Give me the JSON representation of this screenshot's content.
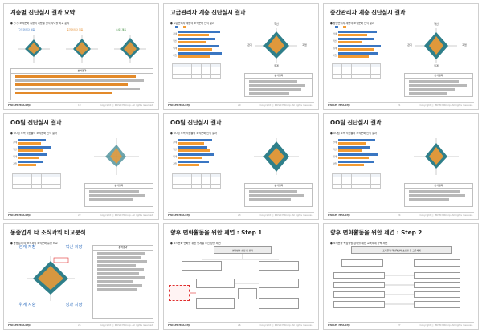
{
  "slides": [
    {
      "title": "계층별 진단실시 결과 요약",
      "radar_titles": [
        "고급관리자 계층",
        "중간관리자 계층",
        "사원 계층"
      ],
      "analysis_label": "분석결과",
      "page": "19"
    },
    {
      "title": "고급관리자 계층 진단실시 결과",
      "analysis_label": "분석결과",
      "page": "20"
    },
    {
      "title": "중간관리자 계층 진단실시 결과",
      "analysis_label": "분석결과",
      "page": "21"
    },
    {
      "title": "OO팀 진단실시 결과",
      "analysis_label": "분석결과",
      "page": "22"
    },
    {
      "title": "OO팀 진단실시 결과",
      "analysis_label": "분석결과",
      "page": "23"
    },
    {
      "title": "OO팀 진단실시 결과",
      "analysis_label": "분석결과",
      "page": "24"
    },
    {
      "title": "동종업계 타 조직과의 비교분석",
      "analysis_label": "분석결과",
      "page": "25"
    },
    {
      "title": "향후 변화활동을 위한 제언 : Step 1",
      "center_label": "변화방안 설정 및 전파",
      "page": "26"
    },
    {
      "title": "향후 변화활동을 위한 제언 : Step 2",
      "center_label": "조직문화 핵심역량에 초점을 둔 교육체계",
      "page": "27"
    }
  ],
  "radar_axes": [
    "관계",
    "혁신",
    "위계",
    "과업"
  ],
  "slide7_axes": {
    "top_left": "관계 지향",
    "top_right": "혁신 지향",
    "bottom_left": "위계 지향",
    "bottom_right": "성과 지향"
  },
  "footer": {
    "logo": "PRISM HRCorp",
    "copyright": "Copyright ⓒ PRISM HRCorp. All rights reserved."
  },
  "colors": {
    "blue": "#3a76c2",
    "orange": "#f39b32",
    "teal": "#2f7f8a",
    "red": "#e03030"
  }
}
